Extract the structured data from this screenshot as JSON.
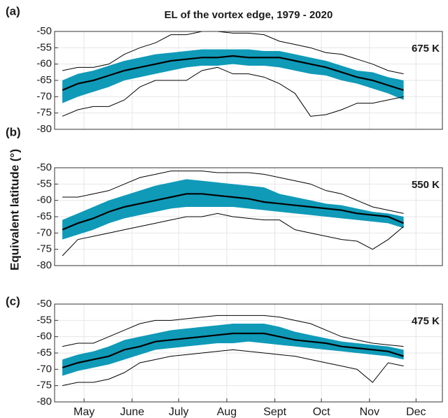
{
  "chart_data": [
    {
      "type": "line",
      "title": "EL of the vortex edge, 1979 - 2020",
      "label": "(a)",
      "annotation": "675 K",
      "x": [
        121,
        131,
        141,
        151,
        161,
        171,
        181,
        191,
        201,
        211,
        221,
        231,
        241,
        251,
        261,
        271,
        281,
        291,
        301,
        311,
        321,
        331,
        341
      ],
      "xlim": [
        116,
        366
      ],
      "ylim": [
        -80,
        -50
      ],
      "yticks": [
        -50,
        -55,
        -60,
        -65,
        -70,
        -75,
        -80
      ],
      "grid": true,
      "band": {
        "color": "#0f9ab8",
        "upper": [
          -65,
          -63,
          -62,
          -60.5,
          -59,
          -58,
          -57,
          -56.5,
          -56,
          -55.5,
          -55.5,
          -55.5,
          -55.5,
          -56,
          -56,
          -57,
          -58,
          -59,
          -60.5,
          -62,
          -62.5,
          -64,
          -65
        ],
        "lower": [
          -72,
          -70,
          -68.5,
          -67,
          -65,
          -64,
          -63,
          -62,
          -61,
          -60.5,
          -60.5,
          -60,
          -60.5,
          -60.5,
          -61,
          -62,
          -63,
          -63.5,
          -65,
          -66,
          -67.5,
          -69,
          -71
        ]
      },
      "series": [
        {
          "color": "#000000",
          "values": [
            -62,
            -61,
            -61,
            -60,
            -57,
            -55,
            -53.5,
            -51,
            -51,
            -50,
            -50,
            -50.5,
            -50.5,
            -51,
            -53,
            -54,
            -55,
            -56.5,
            -57,
            -58.5,
            -60,
            -62,
            -63
          ]
        },
        {
          "color": "#000000",
          "values": [
            -76,
            -74,
            -73,
            -73,
            -71,
            -67,
            -65,
            -65,
            -65,
            -62,
            -61,
            -63,
            -63,
            -64,
            -66,
            -69,
            -76,
            -75.5,
            -74,
            -72,
            -72,
            -71,
            -70
          ]
        },
        {
          "color": "#000000",
          "values": [
            -68,
            -66,
            -65,
            -63.5,
            -62,
            -61,
            -60,
            -59,
            -58.5,
            -58,
            -58,
            -57.5,
            -58,
            -58,
            -58,
            -59,
            -60,
            -61,
            -62.5,
            -64,
            -65,
            -66.5,
            -68
          ]
        }
      ]
    },
    {
      "type": "line",
      "label": "(b)",
      "annotation": "550 K",
      "ylabel": "Equivalent latitude (°)",
      "x": [
        121,
        131,
        141,
        151,
        161,
        171,
        181,
        191,
        201,
        211,
        221,
        231,
        241,
        251,
        261,
        271,
        281,
        291,
        301,
        311,
        321,
        331,
        341
      ],
      "xlim": [
        116,
        366
      ],
      "ylim": [
        -80,
        -50
      ],
      "yticks": [
        -50,
        -55,
        -60,
        -65,
        -70,
        -75,
        -80
      ],
      "grid": true,
      "band": {
        "color": "#0f9ab8",
        "upper": [
          -66,
          -64,
          -62,
          -60,
          -58.5,
          -57,
          -55.5,
          -54.5,
          -53.5,
          -54,
          -54.5,
          -55,
          -55.5,
          -56,
          -58,
          -59,
          -60,
          -61,
          -61.5,
          -62.5,
          -63.5,
          -64,
          -65
        ],
        "lower": [
          -72,
          -70.5,
          -69,
          -67,
          -65.5,
          -64.5,
          -63.5,
          -62.5,
          -62,
          -62,
          -62,
          -62,
          -62.5,
          -63,
          -63.5,
          -64,
          -64.5,
          -65,
          -65.5,
          -66,
          -66.5,
          -67,
          -68.5
        ]
      },
      "series": [
        {
          "color": "#000000",
          "values": [
            -59,
            -59,
            -58,
            -57,
            -55,
            -53,
            -52,
            -51,
            -51,
            -51,
            -51.5,
            -51.5,
            -51.5,
            -52,
            -53,
            -54,
            -55,
            -57,
            -58,
            -60,
            -62,
            -63,
            -64
          ]
        },
        {
          "color": "#000000",
          "values": [
            -77,
            -72,
            -71,
            -70,
            -69,
            -68,
            -67,
            -66,
            -65,
            -65,
            -64,
            -65,
            -65.5,
            -66,
            -66,
            -69,
            -70,
            -71,
            -72,
            -72.5,
            -75,
            -72,
            -68
          ]
        },
        {
          "color": "#000000",
          "values": [
            -69,
            -67,
            -65.5,
            -63.5,
            -62,
            -61,
            -60,
            -59,
            -58,
            -58,
            -58.5,
            -59,
            -59.5,
            -60.5,
            -61,
            -61.5,
            -62,
            -62.5,
            -63,
            -64,
            -64.5,
            -65,
            -67
          ]
        }
      ]
    },
    {
      "type": "line",
      "label": "(c)",
      "annotation": "475 K",
      "x": [
        121,
        131,
        141,
        151,
        161,
        171,
        181,
        191,
        201,
        211,
        221,
        231,
        241,
        251,
        261,
        271,
        281,
        291,
        301,
        311,
        321,
        331,
        341
      ],
      "xlim": [
        116,
        366
      ],
      "ylim": [
        -80,
        -50
      ],
      "yticks": [
        -50,
        -55,
        -60,
        -65,
        -70,
        -75,
        -80
      ],
      "grid": true,
      "xticks": [
        {
          "value": 135,
          "label": "May"
        },
        {
          "value": 166,
          "label": "June"
        },
        {
          "value": 196,
          "label": "July"
        },
        {
          "value": 227,
          "label": "Aug"
        },
        {
          "value": 258,
          "label": "Sept"
        },
        {
          "value": 288,
          "label": "Oct"
        },
        {
          "value": 319,
          "label": "Nov"
        },
        {
          "value": 349,
          "label": "Dec"
        }
      ],
      "band": {
        "color": "#0f9ab8",
        "upper": [
          -67,
          -65.5,
          -64.5,
          -63,
          -61,
          -60,
          -59,
          -58,
          -57.5,
          -57,
          -56.5,
          -56,
          -56,
          -56,
          -57,
          -58.5,
          -59.5,
          -60.5,
          -61.5,
          -62,
          -62.5,
          -63,
          -64
        ],
        "lower": [
          -72,
          -70.5,
          -69.5,
          -68.5,
          -67,
          -65.5,
          -64,
          -63.5,
          -63,
          -62.5,
          -62,
          -62,
          -61.5,
          -62,
          -62.5,
          -63,
          -63.5,
          -64,
          -64.5,
          -65,
          -65.5,
          -66,
          -67
        ]
      },
      "series": [
        {
          "color": "#000000",
          "values": [
            -63,
            -62,
            -62,
            -60,
            -58,
            -56,
            -55,
            -55,
            -54.5,
            -54,
            -53.5,
            -53.5,
            -53.5,
            -53.5,
            -54,
            -55,
            -56,
            -58,
            -60,
            -61,
            -62,
            -62.5,
            -63
          ]
        },
        {
          "color": "#000000",
          "values": [
            -75,
            -74,
            -74,
            -73,
            -71,
            -68,
            -67,
            -66,
            -65.5,
            -65,
            -64.5,
            -64,
            -64.5,
            -65,
            -65.5,
            -66,
            -67,
            -68,
            -69,
            -70,
            -74,
            -68,
            -69
          ]
        },
        {
          "color": "#000000",
          "values": [
            -69.5,
            -68,
            -67,
            -66,
            -64,
            -63,
            -61.5,
            -61,
            -60.5,
            -60,
            -59.5,
            -59,
            -59,
            -59,
            -60,
            -61,
            -61.5,
            -62,
            -63,
            -63.5,
            -64,
            -64.5,
            -66
          ]
        }
      ]
    }
  ]
}
